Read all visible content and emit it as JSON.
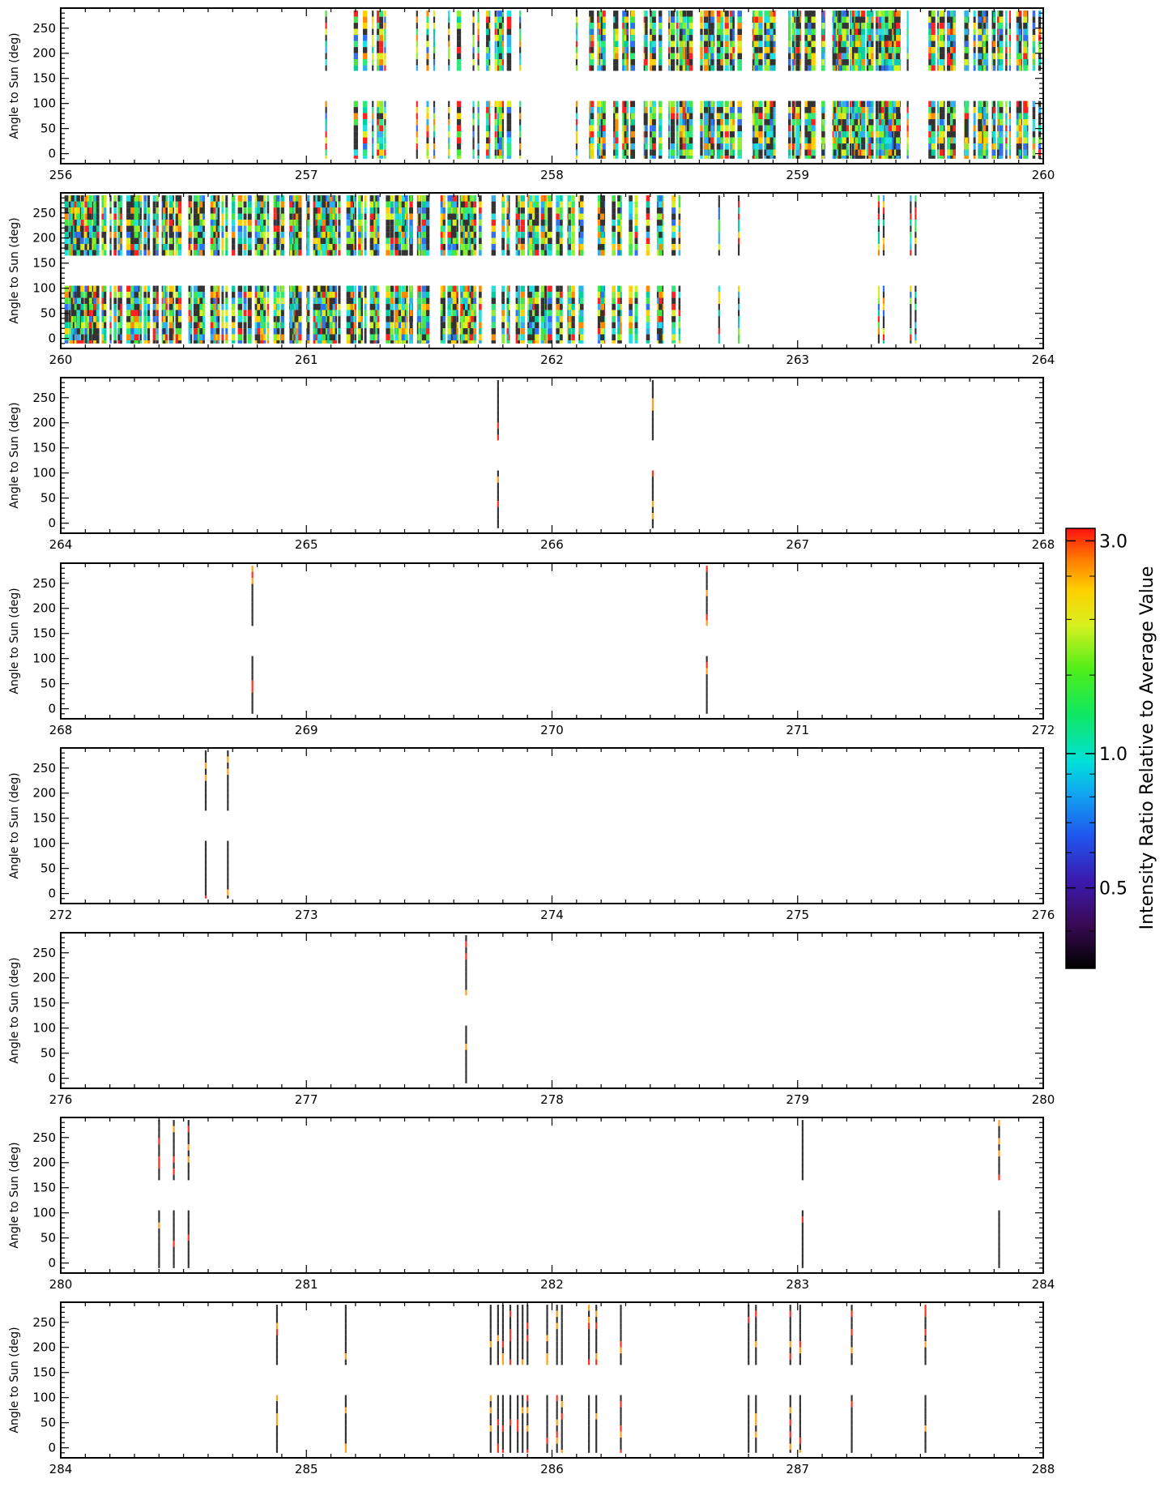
{
  "chart_data": {
    "type": "heatmap",
    "ylabel": "Angle to Sun (deg)",
    "colorbar": {
      "label": "Intensity Ratio Relative to Average Value",
      "ticks": [
        {
          "value": 3.0,
          "label": "3.0"
        },
        {
          "value": 1.0,
          "label": "1.0"
        },
        {
          "value": 0.5,
          "label": "0.5"
        }
      ],
      "range": [
        0.33,
        3.2
      ],
      "scale": "log",
      "colormap": "rainbow (black-purple-blue-cyan-green-yellow-orange-red)"
    },
    "y_range": [
      -20,
      290
    ],
    "y_ticks": [
      0,
      50,
      100,
      150,
      200,
      250
    ],
    "angle_bands": [
      [
        -10,
        105
      ],
      [
        165,
        285
      ]
    ],
    "panels": [
      {
        "x_range": [
          256,
          260
        ],
        "x_ticks": [
          "256",
          "257",
          "258",
          "259",
          "260"
        ],
        "density": [
          {
            "x0": 257.05,
            "x1": 258.1,
            "n": 12
          },
          {
            "x0": 258.15,
            "x1": 260.0,
            "n": 150
          }
        ],
        "columns": [
          257.08,
          257.27,
          257.32,
          257.45,
          257.52,
          257.58,
          257.68,
          257.7,
          257.78,
          257.8,
          257.87,
          258.1
        ]
      },
      {
        "x_range": [
          260,
          264
        ],
        "x_ticks": [
          "260",
          "261",
          "262",
          "263",
          "264"
        ],
        "density": [
          {
            "x0": 260.0,
            "x1": 261.7,
            "n": 160
          },
          {
            "x0": 261.7,
            "x1": 262.25,
            "n": 30
          },
          {
            "x0": 262.25,
            "x1": 262.52,
            "n": 10
          }
        ],
        "columns": [
          262.68,
          262.76,
          263.33,
          263.35,
          263.46,
          263.48
        ]
      },
      {
        "x_range": [
          264,
          268
        ],
        "x_ticks": [
          "264",
          "265",
          "266",
          "267",
          "268"
        ],
        "columns": [
          265.78,
          266.41
        ]
      },
      {
        "x_range": [
          268,
          272
        ],
        "x_ticks": [
          "268",
          "269",
          "270",
          "271",
          "272"
        ],
        "columns": [
          268.78,
          270.63
        ]
      },
      {
        "x_range": [
          272,
          276
        ],
        "x_ticks": [
          "272",
          "273",
          "274",
          "275",
          "276"
        ],
        "columns": [
          272.59,
          272.68
        ]
      },
      {
        "x_range": [
          276,
          280
        ],
        "x_ticks": [
          "276",
          "277",
          "278",
          "279",
          "280"
        ],
        "columns": [
          277.65
        ]
      },
      {
        "x_range": [
          280,
          284
        ],
        "x_ticks": [
          "280",
          "281",
          "282",
          "283",
          "284"
        ],
        "columns": [
          280.4,
          280.46,
          280.52,
          283.02,
          283.82
        ]
      },
      {
        "x_range": [
          284,
          288
        ],
        "x_ticks": [
          "284",
          "285",
          "286",
          "287",
          "288"
        ],
        "columns": [
          284.88,
          285.16,
          285.75,
          285.78,
          285.8,
          285.83,
          285.86,
          285.88,
          285.9,
          285.98,
          286.02,
          286.04,
          286.15,
          286.18,
          286.28,
          286.8,
          286.83,
          286.97,
          287.01,
          287.22,
          287.52
        ]
      }
    ]
  }
}
